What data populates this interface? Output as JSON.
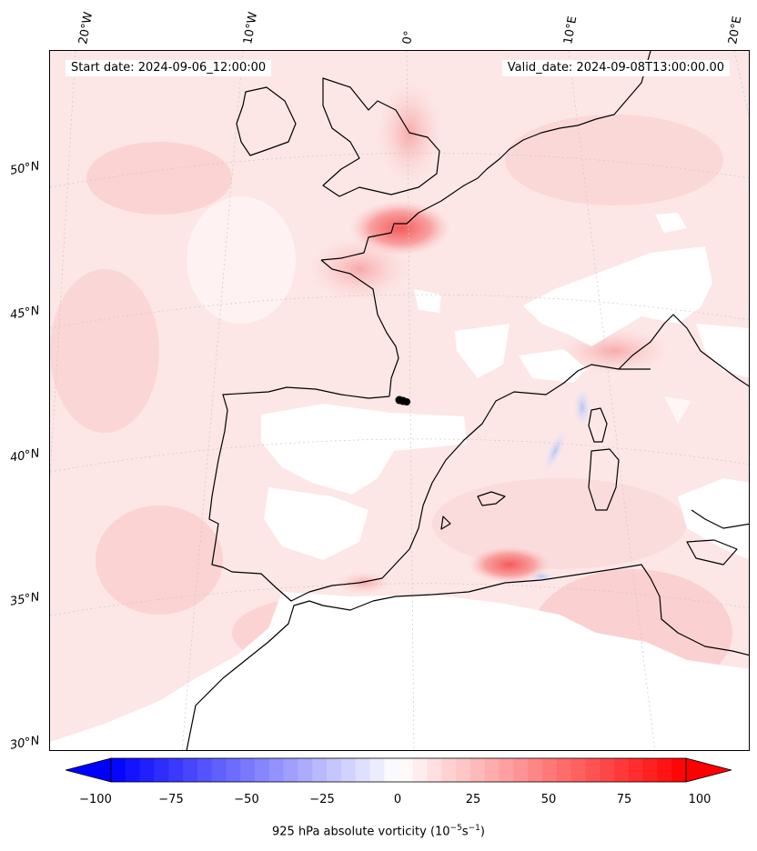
{
  "header": {
    "start_date": "Start date: 2024-09-06_12:00:00",
    "valid_date": "Valid_date: 2024-09-08T13:00:00.00"
  },
  "longitude_labels": [
    "20°W",
    "10°W",
    "0°",
    "10°E",
    "20°E"
  ],
  "latitude_labels": [
    "50°N",
    "45°N",
    "40°N",
    "35°N",
    "30°N"
  ],
  "colorbar": {
    "ticks": [
      "−100",
      "−75",
      "−50",
      "−25",
      "0",
      "25",
      "50",
      "75",
      "100"
    ],
    "label_prefix": "925 hPa absolute vorticity (10",
    "label_exp1": "−5",
    "label_mid": "s",
    "label_exp2": "−1",
    "label_suffix": ")",
    "range": [
      -100,
      100
    ],
    "colormap": "bwr",
    "extend": "both"
  },
  "colors": {
    "background_field": "#fde6e6",
    "coastline": "#000000",
    "marker": "#000000"
  }
}
